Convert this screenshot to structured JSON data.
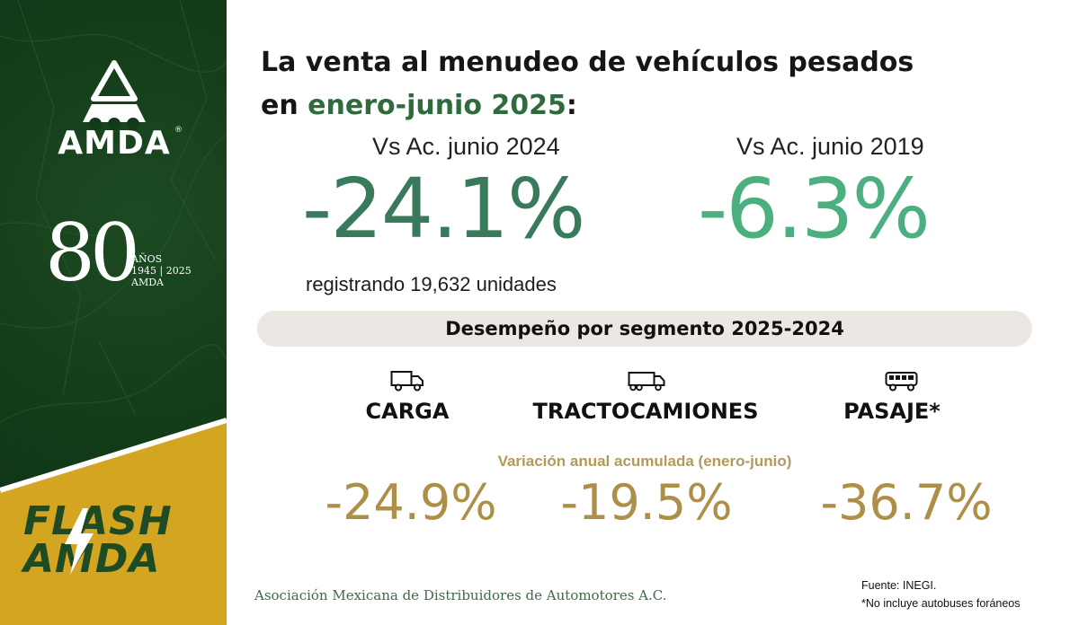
{
  "branding": {
    "logo_text": "AMDA",
    "registered_mark": "®",
    "anniversary_number": "80",
    "anniversary_word": "AÑOS",
    "anniversary_years": "1945 | 2025",
    "anniversary_org": "AMDA",
    "flash_line1": "FLASH",
    "flash_line2": "AMDA"
  },
  "headline": {
    "line1": "La venta al menudeo de vehículos pesados",
    "line2_prefix": "en ",
    "line2_accent": "enero-junio 2025",
    "line2_suffix": ":"
  },
  "comparisons": [
    {
      "label": "Vs Ac. junio 2024",
      "value": "-24.1%"
    },
    {
      "label": "Vs Ac. junio 2019",
      "value": "-6.3%"
    }
  ],
  "units_note": "registrando 19,632 unidades",
  "segment_title": "Desempeño por segmento 2025-2024",
  "segments": [
    {
      "name": "CARGA",
      "icon": "box-truck-icon",
      "value": "-24.9%"
    },
    {
      "name": "TRACTOCAMIONES",
      "icon": "semi-truck-icon",
      "value": "-19.5%"
    },
    {
      "name": "PASAJE*",
      "icon": "bus-icon",
      "value": "-36.7%"
    }
  ],
  "variation_label": "Variación anual acumulada (enero-junio)",
  "footer": {
    "association": "Asociación Mexicana de Distribuidores de Automotores A.C.",
    "source": "Fuente: INEGI.",
    "note": "*No incluye autobuses foráneos"
  },
  "colors": {
    "panel_green": "#123a18",
    "panel_gold": "#d4a521",
    "accent_green": "#2f6b3c",
    "value_green_dark": "#3a7a5c",
    "value_green_light": "#4caf7f",
    "gold_text": "#ad8f48"
  }
}
